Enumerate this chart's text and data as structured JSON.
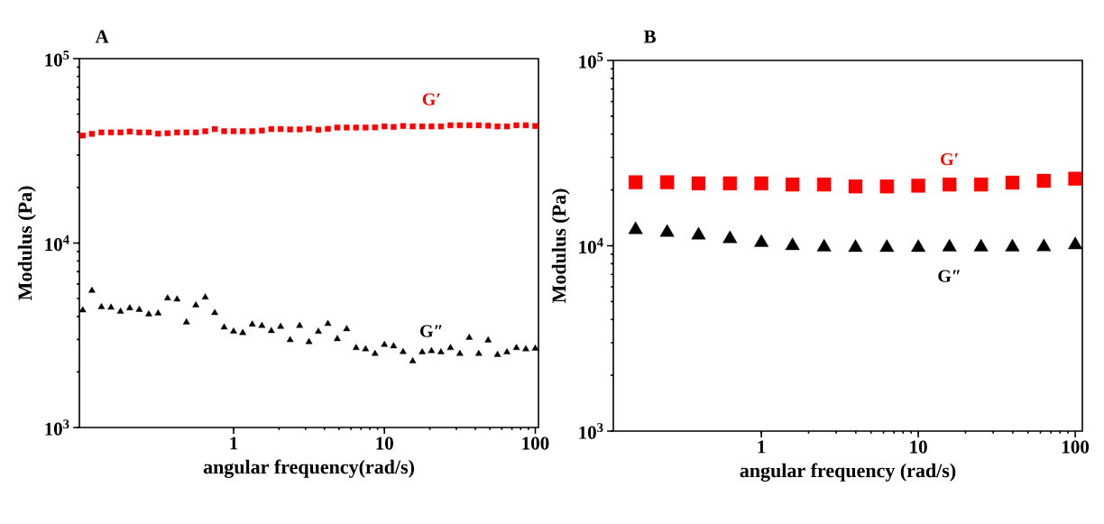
{
  "chart_data": [
    {
      "type": "scatter",
      "title": "A",
      "xlabel": "angular frequency(rad/s)",
      "ylabel": "Modulus (Pa)",
      "log": "xy",
      "xlim": [
        0.095,
        105
      ],
      "ylim": [
        1000,
        100000
      ],
      "xticks": [
        1,
        10,
        100
      ],
      "yticks": [
        {
          "value": 1000,
          "label": "10$^{3}$"
        },
        {
          "value": 10000,
          "label": "10$^{4}$"
        },
        {
          "value": 100000,
          "label": "10$^{5}$"
        }
      ],
      "x": [
        0.1,
        0.115,
        0.133,
        0.154,
        0.178,
        0.205,
        0.237,
        0.274,
        0.316,
        0.365,
        0.422,
        0.487,
        0.562,
        0.649,
        0.75,
        0.866,
        1,
        1.15,
        1.33,
        1.54,
        1.78,
        2.05,
        2.37,
        2.74,
        3.16,
        3.65,
        4.22,
        4.87,
        5.62,
        6.49,
        7.5,
        8.66,
        10,
        11.5,
        13.3,
        15.4,
        17.8,
        20.5,
        23.7,
        27.4,
        31.6,
        36.5,
        42.2,
        48.7,
        56.2,
        64.9,
        75,
        86.6,
        100
      ],
      "series": [
        {
          "name": "G′",
          "color": "#ff0000",
          "marker": "square",
          "values": [
            38300,
            39100,
            39800,
            39800,
            39800,
            40200,
            39800,
            39800,
            39200,
            39400,
            39800,
            39800,
            39800,
            40400,
            41500,
            40400,
            40400,
            40400,
            40400,
            40700,
            41500,
            41500,
            41300,
            41300,
            41800,
            41100,
            41600,
            42300,
            42300,
            42300,
            42300,
            42400,
            42900,
            42600,
            43100,
            42900,
            42900,
            42900,
            42900,
            43500,
            43500,
            43500,
            43500,
            43300,
            42900,
            42900,
            43500,
            43500,
            43100
          ]
        },
        {
          "name": "G″",
          "color": "#000000",
          "marker": "triangle",
          "values": [
            4320,
            5520,
            4500,
            4470,
            4250,
            4440,
            4350,
            4110,
            4160,
            5020,
            4950,
            3720,
            4600,
            5080,
            4180,
            3490,
            3320,
            3260,
            3620,
            3560,
            3340,
            3520,
            2980,
            3560,
            2910,
            3310,
            3650,
            3020,
            3420,
            2700,
            2660,
            2510,
            2810,
            2760,
            2570,
            2290,
            2560,
            2600,
            2560,
            2700,
            2510,
            3070,
            2510,
            2970,
            2480,
            2560,
            2700,
            2660,
            2680
          ]
        }
      ]
    },
    {
      "type": "scatter",
      "title": "B",
      "xlabel": "angular frequency (rad/s)",
      "ylabel": "Modulus (Pa)",
      "log": "xy",
      "xlim": [
        0.114,
        111
      ],
      "ylim": [
        1000,
        100000
      ],
      "xticks": [
        1,
        10,
        100
      ],
      "yticks": [
        {
          "value": 1000,
          "label": "10$^{3}$"
        },
        {
          "value": 10000,
          "label": "10$^{4}$"
        },
        {
          "value": 100000,
          "label": "10$^{5}$"
        }
      ],
      "x": [
        0.158,
        0.251,
        0.398,
        0.631,
        1,
        1.58,
        2.51,
        3.98,
        6.31,
        10,
        15.8,
        25.1,
        39.8,
        63.1,
        100
      ],
      "series": [
        {
          "name": "G′",
          "color": "#ff0000",
          "marker": "square",
          "values": [
            22000,
            22000,
            21700,
            21700,
            21700,
            21400,
            21400,
            20900,
            20900,
            21100,
            21400,
            21400,
            21900,
            22400,
            23000
          ]
        },
        {
          "name": "G″",
          "color": "#000000",
          "marker": "triangle",
          "values": [
            12200,
            11800,
            11400,
            10900,
            10400,
            10000,
            9820,
            9780,
            9780,
            9780,
            9820,
            9820,
            9820,
            9870,
            10100
          ]
        }
      ]
    }
  ]
}
